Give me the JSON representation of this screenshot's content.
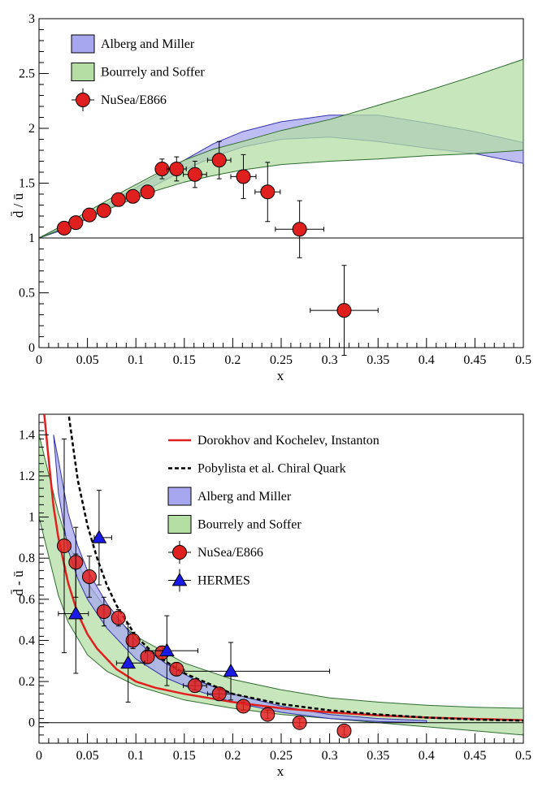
{
  "chart_data": [
    {
      "type": "line",
      "panel": "top",
      "xlabel": "x",
      "ylabel": "d̄ / ū",
      "xlim": [
        0,
        0.5
      ],
      "ylim": [
        0,
        3
      ],
      "x_ticks": [
        0,
        0.05,
        0.1,
        0.15,
        0.2,
        0.25,
        0.3,
        0.35,
        0.4,
        0.45,
        0.5
      ],
      "x_tick_labels": [
        "0",
        "0.05",
        "0.1",
        "0.15",
        "0.2",
        "0.25",
        "0.3",
        "0.35",
        "0.4",
        "0.45",
        "0.5"
      ],
      "y_ticks": [
        0,
        0.5,
        1,
        1.5,
        2,
        2.5,
        3
      ],
      "y_tick_labels": [
        "0",
        "0.5",
        "1",
        "1.5",
        "2",
        "2.5",
        "3"
      ],
      "reference_line": 1,
      "legend": {
        "position": "top-left",
        "entries": [
          {
            "label": "Alberg and Miller",
            "kind": "band",
            "series": "alberg"
          },
          {
            "label": "Bourrely and Soffer",
            "kind": "band",
            "series": "bourrely"
          },
          {
            "label": "NuSea/E866",
            "kind": "circle",
            "series": "nusea"
          }
        ]
      },
      "bands": [
        {
          "name": "Alberg and Miller",
          "key": "alberg",
          "fill": "#a7a7f0",
          "stroke": "#3333aa",
          "x": [
            0.0,
            0.03,
            0.06,
            0.09,
            0.12,
            0.15,
            0.18,
            0.21,
            0.25,
            0.3,
            0.35,
            0.4,
            0.45,
            0.5
          ],
          "upper": [
            1.0,
            1.12,
            1.26,
            1.41,
            1.56,
            1.71,
            1.86,
            1.97,
            2.06,
            2.12,
            2.12,
            2.05,
            1.97,
            1.87
          ],
          "lower": [
            1.0,
            1.09,
            1.22,
            1.35,
            1.48,
            1.62,
            1.74,
            1.83,
            1.9,
            1.92,
            1.88,
            1.82,
            1.77,
            1.68
          ]
        },
        {
          "name": "Bourrely and Soffer",
          "key": "bourrely",
          "fill": "#b4dea4",
          "stroke": "#2f6b2f",
          "x": [
            0.0,
            0.03,
            0.06,
            0.09,
            0.12,
            0.15,
            0.18,
            0.21,
            0.25,
            0.3,
            0.35,
            0.4,
            0.45,
            0.5
          ],
          "upper": [
            1.0,
            1.14,
            1.29,
            1.44,
            1.58,
            1.71,
            1.81,
            1.88,
            1.98,
            2.08,
            2.21,
            2.34,
            2.48,
            2.63
          ],
          "lower": [
            1.0,
            1.1,
            1.22,
            1.33,
            1.43,
            1.51,
            1.57,
            1.62,
            1.67,
            1.7,
            1.72,
            1.75,
            1.77,
            1.8
          ]
        }
      ],
      "points": [
        {
          "name": "NuSea/E866",
          "key": "nusea",
          "color": "#e0201e",
          "x": [
            0.026,
            0.038,
            0.052,
            0.067,
            0.082,
            0.097,
            0.112,
            0.127,
            0.142,
            0.161,
            0.186,
            0.211,
            0.236,
            0.269,
            0.315
          ],
          "y": [
            1.09,
            1.14,
            1.21,
            1.25,
            1.35,
            1.38,
            1.42,
            1.63,
            1.63,
            1.58,
            1.71,
            1.56,
            1.42,
            1.08,
            0.34
          ],
          "yerr": [
            0.03,
            0.03,
            0.03,
            0.03,
            0.04,
            0.05,
            0.05,
            0.09,
            0.11,
            0.12,
            0.17,
            0.2,
            0.27,
            0.26,
            0.41
          ],
          "xerr": [
            0.0,
            0.0,
            0.0,
            0.0,
            0.0,
            0.0,
            0.0,
            0.0,
            0.01,
            0.012,
            0.012,
            0.013,
            0.013,
            0.025,
            0.035
          ]
        }
      ]
    },
    {
      "type": "line",
      "panel": "bottom",
      "xlabel": "x",
      "ylabel": "d̄ - ū",
      "xlim": [
        0,
        0.5
      ],
      "ylim": [
        -0.1,
        1.5
      ],
      "x_ticks": [
        0,
        0.05,
        0.1,
        0.15,
        0.2,
        0.25,
        0.3,
        0.35,
        0.4,
        0.45,
        0.5
      ],
      "x_tick_labels": [
        "0",
        "0.05",
        "0.1",
        "0.15",
        "0.2",
        "0.25",
        "0.3",
        "0.35",
        "0.4",
        "0.45",
        "0.5"
      ],
      "y_ticks": [
        0,
        0.2,
        0.4,
        0.6,
        0.8,
        1,
        1.2,
        1.4
      ],
      "y_tick_labels": [
        "0",
        "0.2",
        "0.4",
        "0.6",
        "0.8",
        "1",
        "1.2",
        "1.4"
      ],
      "reference_line": 0,
      "legend": {
        "position": "top-right",
        "entries": [
          {
            "label": "Dorokhov and Kochelev, Instanton",
            "kind": "line",
            "series": "dorokhov"
          },
          {
            "label": "Pobylista et al. Chiral Quark",
            "kind": "dashed",
            "series": "pobylista"
          },
          {
            "label": "Alberg and Miller",
            "kind": "band",
            "series": "alberg"
          },
          {
            "label": "Bourrely and Soffer",
            "kind": "band",
            "series": "bourrely"
          },
          {
            "label": "NuSea/E866",
            "kind": "circle",
            "series": "nusea"
          },
          {
            "label": "HERMES",
            "kind": "triangle",
            "series": "hermes"
          }
        ]
      },
      "bands": [
        {
          "name": "Bourrely and Soffer",
          "key": "bourrely",
          "fill": "#b4dea4",
          "stroke": "#2f6b2f",
          "x": [
            0.0,
            0.02,
            0.03,
            0.05,
            0.07,
            0.1,
            0.15,
            0.2,
            0.25,
            0.3,
            0.35,
            0.4,
            0.45,
            0.5
          ],
          "upper": [
            1.4,
            1.02,
            0.87,
            0.68,
            0.55,
            0.42,
            0.29,
            0.21,
            0.16,
            0.12,
            0.1,
            0.085,
            0.075,
            0.07
          ],
          "lower": [
            1.0,
            0.62,
            0.49,
            0.33,
            0.25,
            0.18,
            0.11,
            0.07,
            0.04,
            0.02,
            0.0,
            -0.02,
            -0.04,
            -0.06
          ]
        },
        {
          "name": "Alberg and Miller",
          "key": "alberg",
          "fill": "#a7a7f0",
          "stroke": "#3333aa",
          "x": [
            0.015,
            0.02,
            0.03,
            0.04,
            0.05,
            0.07,
            0.1,
            0.13,
            0.16,
            0.2,
            0.25,
            0.3,
            0.35,
            0.4
          ],
          "upper": [
            1.4,
            1.28,
            1.02,
            0.86,
            0.74,
            0.58,
            0.4,
            0.29,
            0.21,
            0.14,
            0.08,
            0.04,
            0.02,
            0.01
          ],
          "lower": [
            1.4,
            1.12,
            0.84,
            0.7,
            0.6,
            0.46,
            0.31,
            0.22,
            0.16,
            0.1,
            0.05,
            0.02,
            0.005,
            0.0
          ]
        }
      ],
      "curves": [
        {
          "name": "Dorokhov and Kochelev, Instanton",
          "key": "dorokhov",
          "color": "#e0201e",
          "dash": "",
          "x": [
            0.005,
            0.01,
            0.015,
            0.02,
            0.03,
            0.04,
            0.05,
            0.06,
            0.08,
            0.1,
            0.12,
            0.15,
            0.2,
            0.25,
            0.3,
            0.35,
            0.4,
            0.45,
            0.5
          ],
          "y": [
            1.52,
            1.28,
            1.05,
            0.9,
            0.68,
            0.53,
            0.43,
            0.36,
            0.26,
            0.2,
            0.17,
            0.14,
            0.1,
            0.07,
            0.05,
            0.035,
            0.025,
            0.018,
            0.012
          ]
        },
        {
          "name": "Pobylista et al. Chiral Quark",
          "key": "pobylista",
          "color": "#000000",
          "dash": "5,3",
          "x": [
            0.03,
            0.035,
            0.04,
            0.05,
            0.06,
            0.07,
            0.08,
            0.1,
            0.12,
            0.15,
            0.2,
            0.25,
            0.3,
            0.35,
            0.4,
            0.45,
            0.5
          ],
          "y": [
            1.52,
            1.35,
            1.18,
            0.96,
            0.8,
            0.67,
            0.57,
            0.42,
            0.33,
            0.24,
            0.14,
            0.09,
            0.06,
            0.04,
            0.025,
            0.015,
            0.01
          ]
        }
      ],
      "points": [
        {
          "name": "NuSea/E866",
          "key": "nusea",
          "color": "#e0201e",
          "x": [
            0.026,
            0.038,
            0.052,
            0.067,
            0.082,
            0.097,
            0.112,
            0.127,
            0.142,
            0.161,
            0.186,
            0.211,
            0.236,
            0.269,
            0.315
          ],
          "y": [
            0.86,
            0.78,
            0.71,
            0.54,
            0.51,
            0.4,
            0.32,
            0.34,
            0.26,
            0.18,
            0.14,
            0.08,
            0.04,
            0.0,
            -0.04
          ],
          "yerr": [
            0.52,
            0.17,
            0.1,
            0.07,
            0.04,
            0.04,
            0.03,
            0.03,
            0.03,
            0.02,
            0.02,
            0.02,
            0.02,
            0.02,
            0.02
          ],
          "xerr": [
            0.0,
            0.0,
            0.0,
            0.0,
            0.0,
            0.0,
            0.0,
            0.0,
            0.0,
            0.012,
            0.012,
            0.0,
            0.0,
            0.0,
            0.0
          ]
        },
        {
          "name": "HERMES",
          "key": "hermes",
          "color": "#1a1ae6",
          "x": [
            0.038,
            0.062,
            0.092,
            0.132,
            0.198
          ],
          "y": [
            0.53,
            0.9,
            0.29,
            0.35,
            0.25
          ],
          "yerr": [
            0.29,
            0.23,
            0.19,
            0.17,
            0.14
          ],
          "xerrl": [
            0.018,
            0.005,
            0.012,
            0.022,
            0.048
          ],
          "xerrh": [
            0.013,
            0.013,
            0.017,
            0.032,
            0.102
          ]
        }
      ]
    }
  ]
}
